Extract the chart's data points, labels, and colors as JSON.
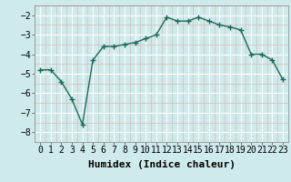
{
  "x": [
    0,
    1,
    2,
    3,
    4,
    5,
    6,
    7,
    8,
    9,
    10,
    11,
    12,
    13,
    14,
    15,
    16,
    17,
    18,
    19,
    20,
    21,
    22,
    23
  ],
  "y": [
    -4.8,
    -4.8,
    -5.4,
    -6.3,
    -7.6,
    -4.3,
    -3.6,
    -3.6,
    -3.5,
    -3.4,
    -3.2,
    -3.0,
    -2.1,
    -2.3,
    -2.3,
    -2.1,
    -2.3,
    -2.5,
    -2.6,
    -2.75,
    -4.0,
    -4.0,
    -4.3,
    -5.3
  ],
  "xlim": [
    -0.5,
    23.5
  ],
  "ylim": [
    -8.5,
    -1.5
  ],
  "yticks": [
    -8,
    -7,
    -6,
    -5,
    -4,
    -3,
    -2
  ],
  "xticks": [
    0,
    1,
    2,
    3,
    4,
    5,
    6,
    7,
    8,
    9,
    10,
    11,
    12,
    13,
    14,
    15,
    16,
    17,
    18,
    19,
    20,
    21,
    22,
    23
  ],
  "xlabel": "Humidex (Indice chaleur)",
  "line_color": "#1a6b5a",
  "marker": "+",
  "marker_size": 4,
  "bg_color": "#ceeaea",
  "grid_major_color": "#ffffff",
  "grid_minor_color": "#dbbaba",
  "xlabel_fontsize": 8,
  "tick_fontsize": 7,
  "linewidth": 1.0
}
